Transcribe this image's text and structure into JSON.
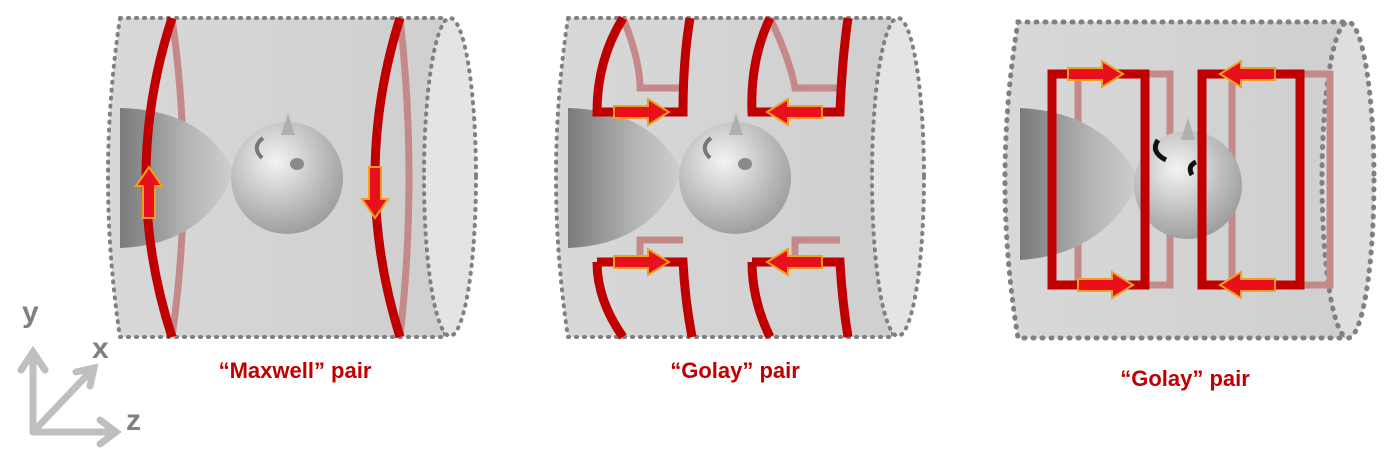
{
  "panels": [
    {
      "caption": "“Maxwell” pair"
    },
    {
      "caption": "“Golay” pair"
    },
    {
      "caption": "“Golay” pair"
    }
  ],
  "axes": {
    "y": "y",
    "x": "x",
    "z": "z"
  },
  "colors": {
    "coil": "#c00000",
    "coil_back": "#c48a8a",
    "arrow_fill": "#e8101a",
    "arrow_edge": "#f0a020",
    "caption": "#c00000",
    "axes": "#bfbfbf",
    "cylinder": "#d3d3d3",
    "cylinder_edge": "#7f7f7f"
  }
}
